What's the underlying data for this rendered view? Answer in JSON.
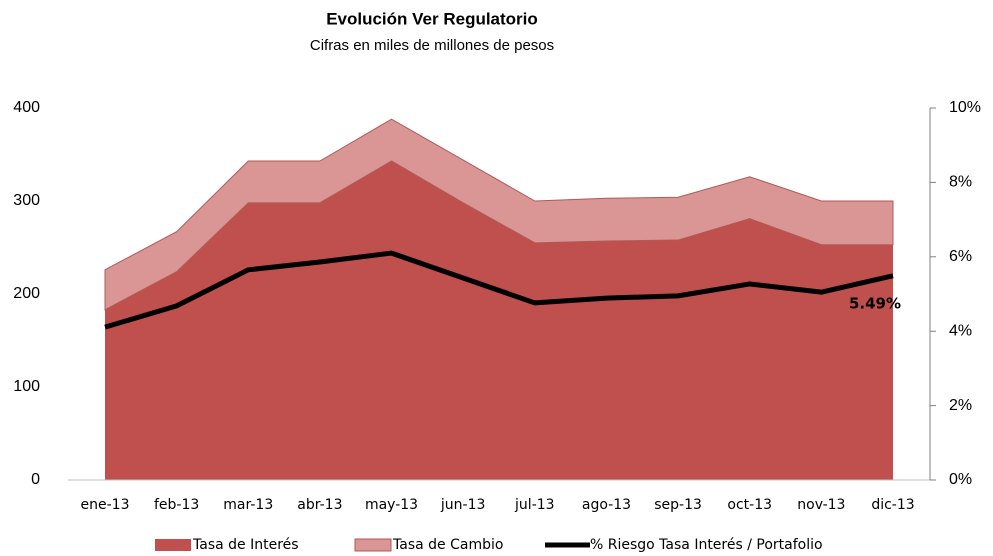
{
  "chart_data": {
    "type": "stacked-area-line",
    "title": "Evolución Ver Regulatorio",
    "subtitle": "Cifras en miles de millones de pesos",
    "categories": [
      "ene-13",
      "feb-13",
      "mar-13",
      "abr-13",
      "may-13",
      "jun-13",
      "jul-13",
      "ago-13",
      "sep-13",
      "oct-13",
      "nov-13",
      "dic-13"
    ],
    "series": [
      {
        "name": "Tasa de Interés",
        "color": "#c0504d",
        "values": [
          183,
          224,
          298,
          298,
          343,
          298,
          255,
          257,
          258,
          281,
          253,
          253
        ]
      },
      {
        "name": "Tasa de Cambio",
        "color": "#d99694",
        "values": [
          43,
          43,
          45,
          45,
          45,
          46,
          45,
          46,
          46,
          45,
          47,
          47
        ]
      },
      {
        "name": "% Riesgo Tasa Interés / Portafolio",
        "color": "#000000",
        "axis": "y2",
        "values": [
          4.11,
          4.68,
          5.65,
          5.86,
          6.1,
          5.43,
          4.76,
          4.89,
          4.95,
          5.27,
          5.05,
          5.49
        ],
        "value_labels": [
          null,
          null,
          null,
          null,
          null,
          null,
          null,
          null,
          null,
          null,
          null,
          "5.49%"
        ]
      }
    ],
    "ylim": [
      0,
      400
    ],
    "yticks": [
      0,
      100,
      200,
      300,
      400
    ],
    "y2lim": [
      0,
      10
    ],
    "y2ticks": [
      {
        "value": 0,
        "label": "0%"
      },
      {
        "value": 2,
        "label": "2%"
      },
      {
        "value": 4,
        "label": "4%"
      },
      {
        "value": 6,
        "label": "6%"
      },
      {
        "value": 8,
        "label": "8%"
      },
      {
        "value": 10,
        "label": "10%"
      }
    ],
    "grid": false,
    "legend": "bottom"
  }
}
